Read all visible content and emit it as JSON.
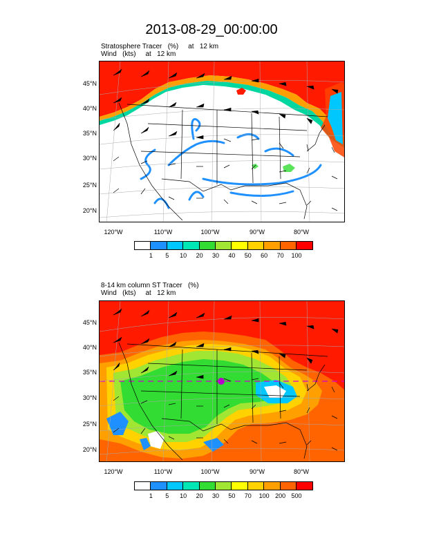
{
  "page_title": "2013-08-29_00:00:00",
  "panel1": {
    "title_line1": "Stratosphere Tracer   (%)     at   12 km",
    "title_line2": "Wind   (kts)     at   12 km",
    "lat_labels": [
      "45°N",
      "40°N",
      "35°N",
      "30°N",
      "25°N",
      "20°N"
    ],
    "lon_labels": [
      "120°W",
      "110°W",
      "100°W",
      "90°W",
      "80°W"
    ],
    "colorbar_labels": [
      "1",
      "5",
      "10",
      "20",
      "30",
      "40",
      "50",
      "60",
      "70",
      "100"
    ],
    "colorbar_colors": [
      "#ffffff",
      "#1e90ff",
      "#00c8ff",
      "#00e6b4",
      "#32dc32",
      "#a0e632",
      "#ffff00",
      "#ffd200",
      "#ffa000",
      "#ff6400",
      "#ff0000"
    ]
  },
  "panel2": {
    "title_line1": "8-14 km column ST Tracer   (%)",
    "title_line2": "Wind   (kts)     at   12 km",
    "lat_labels": [
      "45°N",
      "40°N",
      "35°N",
      "30°N",
      "25°N",
      "20°N"
    ],
    "lon_labels": [
      "120°W",
      "110°W",
      "100°W",
      "90°W",
      "80°W"
    ],
    "colorbar_labels": [
      "1",
      "5",
      "10",
      "20",
      "30",
      "50",
      "70",
      "100",
      "200",
      "500"
    ],
    "colorbar_colors": [
      "#ffffff",
      "#1e90ff",
      "#00c8ff",
      "#00e6b4",
      "#32dc32",
      "#a0e632",
      "#ffff00",
      "#ffd200",
      "#ffa000",
      "#ff6400",
      "#ff0000"
    ]
  }
}
